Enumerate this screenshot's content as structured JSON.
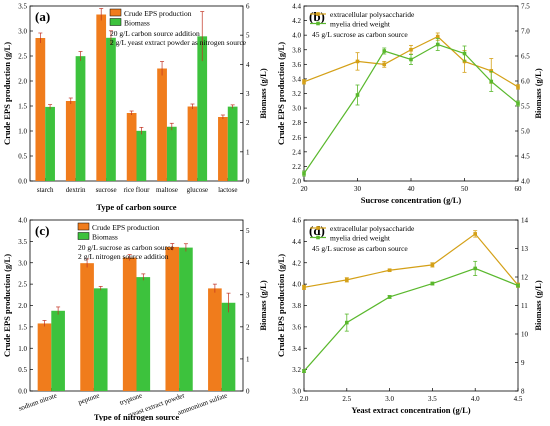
{
  "chart_data": [
    {
      "panel": "(a)",
      "type": "bar",
      "xlabel": "Type of carbon source",
      "ylabel": "Crude EPS production (g/L)",
      "ylabel_right": "Biomass (g/L)",
      "categories": [
        "starch",
        "dextrin",
        "sucrose",
        "rice flour",
        "maltose",
        "glucose",
        "lactose"
      ],
      "ylim": [
        0,
        3.5
      ],
      "yticks": [
        0.0,
        0.5,
        1.0,
        1.5,
        2.0,
        2.5,
        3.0,
        3.5
      ],
      "ylim_right": [
        0,
        6
      ],
      "yticks_right": [
        0,
        1,
        2,
        3,
        4,
        5,
        6
      ],
      "series": [
        {
          "name": "Crude EPS production",
          "axis": "left",
          "color": "#f07c1c",
          "values": [
            2.86,
            1.6,
            3.33,
            1.36,
            2.25,
            1.49,
            1.28
          ],
          "errors": [
            0.1,
            0.06,
            0.12,
            0.04,
            0.14,
            0.05,
            0.04
          ]
        },
        {
          "name": "Biomass",
          "axis": "right",
          "color": "#3dc23d",
          "values": [
            2.54,
            4.28,
            4.91,
            1.72,
            1.86,
            4.96,
            2.55
          ],
          "errors": [
            0.08,
            0.16,
            0.24,
            0.12,
            0.12,
            0.85,
            0.06
          ]
        }
      ],
      "annotations": [
        "20 g/L carbon source addition",
        "2 g/L yeast extract powder as nitrogen source"
      ],
      "legend": "top-center"
    },
    {
      "panel": "(b)",
      "type": "line",
      "xlabel": "Sucrose concentration (g/L)",
      "ylabel": "Crude EPS production (g/L)",
      "ylabel_right": "Biomass (g/L)",
      "xlim": [
        20,
        60
      ],
      "xticks": [
        20,
        30,
        40,
        50,
        60
      ],
      "ylim": [
        2.0,
        4.4
      ],
      "yticks": [
        2.0,
        2.2,
        2.4,
        2.6,
        2.8,
        3.0,
        3.2,
        3.4,
        3.6,
        3.8,
        4.0,
        4.2,
        4.4
      ],
      "ylim_right": [
        4.0,
        7.5
      ],
      "yticks_right": [
        4.0,
        4.5,
        5.0,
        5.5,
        6.0,
        6.5,
        7.0,
        7.5
      ],
      "series": [
        {
          "name": "extracellular polysaccharide",
          "axis": "left",
          "color": "#d4a017",
          "x": [
            20,
            30,
            35,
            40,
            45,
            50,
            55,
            60
          ],
          "y": [
            3.36,
            3.64,
            3.6,
            3.8,
            3.98,
            3.64,
            3.51,
            3.29
          ],
          "errors": [
            0.03,
            0.12,
            0.04,
            0.06,
            0.05,
            0.15,
            0.17,
            0.03
          ]
        },
        {
          "name": "myelia dried weight",
          "axis": "right",
          "color": "#5ab82d",
          "x": [
            20,
            30,
            35,
            40,
            45,
            50,
            55,
            60
          ],
          "y": [
            4.15,
            5.72,
            6.6,
            6.43,
            6.73,
            6.55,
            5.99,
            5.55
          ],
          "errors": [
            0.05,
            0.2,
            0.06,
            0.1,
            0.12,
            0.15,
            0.2,
            0.05
          ]
        }
      ],
      "annotations": [
        "45 g/L sucrose as carbon source"
      ],
      "legend": "top-left"
    },
    {
      "panel": "(c)",
      "type": "bar",
      "xlabel": "Type of nitrogen source",
      "ylabel": "Crude EPS production (g/L)",
      "ylabel_right": "Biomass (g/L)",
      "categories": [
        "sodium nitrate",
        "peptone",
        "tryptone",
        "yeast extract powder",
        "ammonium sulfate"
      ],
      "ylim": [
        0,
        4
      ],
      "yticks": [
        0.0,
        0.5,
        1.0,
        1.5,
        2.0,
        2.5,
        3.0,
        3.5,
        4.0
      ],
      "ylim_right": [
        0,
        5.33
      ],
      "yticks_right": [
        0,
        1,
        2,
        3,
        4,
        5
      ],
      "series": [
        {
          "name": "Crude EPS production",
          "axis": "left",
          "color": "#f07c1c",
          "values": [
            1.58,
            2.99,
            3.12,
            3.37,
            2.4
          ],
          "errors": [
            0.07,
            0.1,
            0.07,
            0.08,
            0.1
          ]
        },
        {
          "name": "Biomass",
          "axis": "right",
          "color": "#3dc23d",
          "values": [
            2.5,
            3.2,
            3.55,
            4.47,
            2.75
          ],
          "errors": [
            0.12,
            0.06,
            0.1,
            0.12,
            0.3
          ]
        }
      ],
      "annotations": [
        "20 g/L sucrose as carbon source",
        "2 g/L nitrogen source addition"
      ],
      "legend": "top-left"
    },
    {
      "panel": "(d)",
      "type": "line",
      "xlabel": "Yeast extract concentration (g/L)",
      "ylabel": "Crude EPS production (g/L)",
      "ylabel_right": "Biomass (g/L)",
      "xlim": [
        2.0,
        4.5
      ],
      "xticks": [
        2.0,
        2.5,
        3.0,
        3.5,
        4.0,
        4.5
      ],
      "ylim": [
        3.0,
        4.6
      ],
      "yticks": [
        3.0,
        3.2,
        3.4,
        3.6,
        3.8,
        4.0,
        4.2,
        4.4,
        4.6
      ],
      "ylim_right": [
        8,
        14
      ],
      "yticks_right": [
        8,
        9,
        10,
        11,
        12,
        13,
        14
      ],
      "series": [
        {
          "name": "extracellular polysaccharide",
          "axis": "left",
          "color": "#d4a017",
          "x": [
            2.0,
            2.5,
            3.0,
            3.5,
            4.0,
            4.5
          ],
          "y": [
            3.97,
            4.04,
            4.13,
            4.18,
            4.47,
            3.99
          ],
          "errors": [
            0.02,
            0.02,
            0.01,
            0.02,
            0.03,
            0.02
          ]
        },
        {
          "name": "myelia dried weight",
          "axis": "right",
          "color": "#5ab82d",
          "x": [
            2.0,
            2.5,
            3.0,
            3.5,
            4.0,
            4.5
          ],
          "y": [
            8.7,
            10.4,
            11.3,
            11.77,
            12.3,
            11.7
          ],
          "errors": [
            0.05,
            0.3,
            0.05,
            0.05,
            0.25,
            0.05
          ]
        }
      ],
      "annotations": [
        "45 g/L sucrose as carbon source"
      ],
      "legend": "top-left"
    }
  ]
}
